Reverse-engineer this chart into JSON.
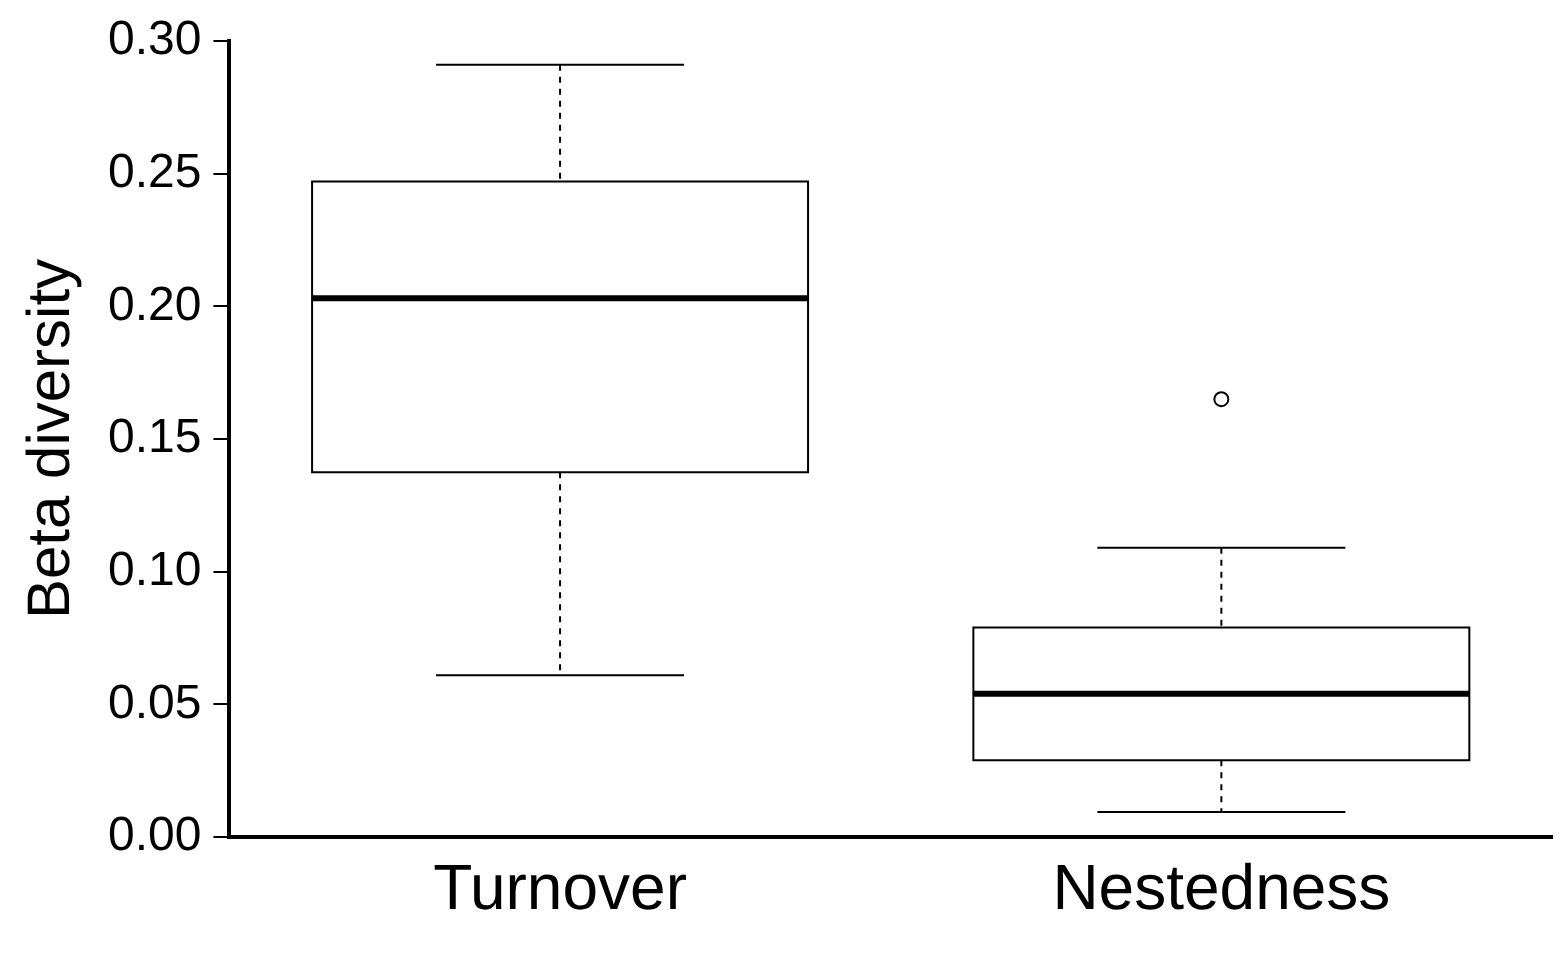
{
  "chart_data": {
    "type": "box",
    "ylabel": "Beta diversity",
    "categories": [
      "Turnover",
      "Nestedness"
    ],
    "boxes": [
      {
        "low": 0.061,
        "q1": 0.1375,
        "median": 0.203,
        "q3": 0.247,
        "high": 0.291
      },
      {
        "low": 0.0095,
        "q1": 0.029,
        "median": 0.054,
        "q3": 0.079,
        "high": 0.109,
        "outliers": [
          0.165
        ]
      }
    ],
    "ylim": [
      0,
      0.3
    ],
    "yticks": [
      {
        "value": 0,
        "label": "0.00"
      },
      {
        "value": 0.05,
        "label": "0.05"
      },
      {
        "value": 0.1,
        "label": "0.10"
      },
      {
        "value": 0.15,
        "label": "0.15"
      },
      {
        "value": 0.2,
        "label": "0.20"
      },
      {
        "value": 0.25,
        "label": "0.25"
      },
      {
        "value": 0.3,
        "label": "0.30"
      }
    ],
    "grid": false,
    "legend": false
  }
}
